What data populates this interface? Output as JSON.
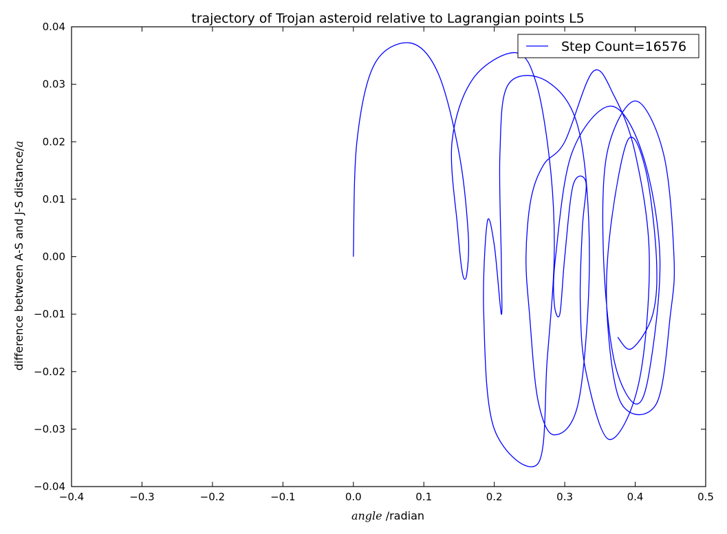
{
  "chart_data": {
    "type": "line",
    "title": "trajectory of Trojan asteroid relative to Lagrangian points L5",
    "xlabel_symbol": "angle",
    "xlabel_text": " /radian",
    "ylabel_text": "difference between A-S and J-S distance/",
    "ylabel_symbol": "a",
    "xlim": [
      -0.4,
      0.5
    ],
    "ylim": [
      -0.04,
      0.04
    ],
    "xticks": [
      -0.4,
      -0.3,
      -0.2,
      -0.1,
      0.0,
      0.1,
      0.2,
      0.3,
      0.4,
      0.5
    ],
    "xtick_labels": [
      "−0.4",
      "−0.3",
      "−0.2",
      "−0.1",
      "0.0",
      "0.1",
      "0.2",
      "0.3",
      "0.4",
      "0.5"
    ],
    "yticks": [
      -0.04,
      -0.03,
      -0.02,
      -0.01,
      0.0,
      0.01,
      0.02,
      0.03,
      0.04
    ],
    "ytick_labels": [
      "−0.04",
      "−0.03",
      "−0.02",
      "−0.01",
      "0.00",
      "0.01",
      "0.02",
      "0.03",
      "0.04"
    ],
    "grid": false,
    "legend": {
      "position": "upper-right",
      "label": "Step Count=16576"
    },
    "series": [
      {
        "name": "Step Count=16576",
        "color": "#0000ff",
        "points": [
          [
            0.0,
            0.0
          ],
          [
            0.005,
            0.02
          ],
          [
            0.03,
            0.0335
          ],
          [
            0.08,
            0.0372
          ],
          [
            0.12,
            0.032
          ],
          [
            0.15,
            0.018
          ],
          [
            0.163,
            0.004
          ],
          [
            0.161,
            -0.003
          ],
          [
            0.155,
            -0.003
          ],
          [
            0.148,
            0.005
          ],
          [
            0.14,
            0.02
          ],
          [
            0.17,
            0.031
          ],
          [
            0.23,
            0.0355
          ],
          [
            0.26,
            0.03
          ],
          [
            0.28,
            0.015
          ],
          [
            0.285,
            0.0
          ],
          [
            0.275,
            -0.018
          ],
          [
            0.262,
            -0.036
          ],
          [
            0.2,
            -0.03
          ],
          [
            0.185,
            -0.01
          ],
          [
            0.19,
            0.006
          ],
          [
            0.2,
            0.002
          ],
          [
            0.21,
            -0.01
          ],
          [
            0.21,
            -0.001
          ],
          [
            0.208,
            0.018
          ],
          [
            0.22,
            0.03
          ],
          [
            0.275,
            0.0305
          ],
          [
            0.32,
            0.022
          ],
          [
            0.335,
            0.0
          ],
          [
            0.32,
            -0.025
          ],
          [
            0.285,
            -0.031
          ],
          [
            0.262,
            -0.025
          ],
          [
            0.25,
            -0.01
          ],
          [
            0.245,
            0.0
          ],
          [
            0.252,
            0.01
          ],
          [
            0.27,
            0.016
          ],
          [
            0.3,
            0.02
          ],
          [
            0.34,
            0.0322
          ],
          [
            0.37,
            0.028
          ],
          [
            0.4,
            0.018
          ],
          [
            0.42,
            0.0
          ],
          [
            0.405,
            -0.022
          ],
          [
            0.363,
            -0.0318
          ],
          [
            0.33,
            -0.02
          ],
          [
            0.322,
            -0.008
          ],
          [
            0.325,
            0.005
          ],
          [
            0.33,
            0.013
          ],
          [
            0.312,
            0.0125
          ],
          [
            0.3,
            0.0
          ],
          [
            0.293,
            -0.01
          ],
          [
            0.285,
            -0.008
          ],
          [
            0.287,
            0.0
          ],
          [
            0.31,
            0.018
          ],
          [
            0.365,
            0.0262
          ],
          [
            0.41,
            0.018
          ],
          [
            0.435,
            0.0
          ],
          [
            0.42,
            -0.02
          ],
          [
            0.4,
            -0.0256
          ],
          [
            0.37,
            -0.018
          ],
          [
            0.355,
            0.0
          ],
          [
            0.36,
            0.018
          ],
          [
            0.4,
            0.0271
          ],
          [
            0.44,
            0.018
          ],
          [
            0.455,
            0.0
          ],
          [
            0.45,
            -0.01
          ],
          [
            0.43,
            -0.0256
          ],
          [
            0.38,
            -0.0255
          ],
          [
            0.36,
            -0.01
          ],
          [
            0.365,
            0.005
          ],
          [
            0.39,
            0.0204
          ],
          [
            0.415,
            0.015
          ],
          [
            0.43,
            0.0
          ],
          [
            0.425,
            -0.01
          ],
          [
            0.395,
            -0.016
          ],
          [
            0.375,
            -0.014
          ]
        ]
      }
    ]
  }
}
